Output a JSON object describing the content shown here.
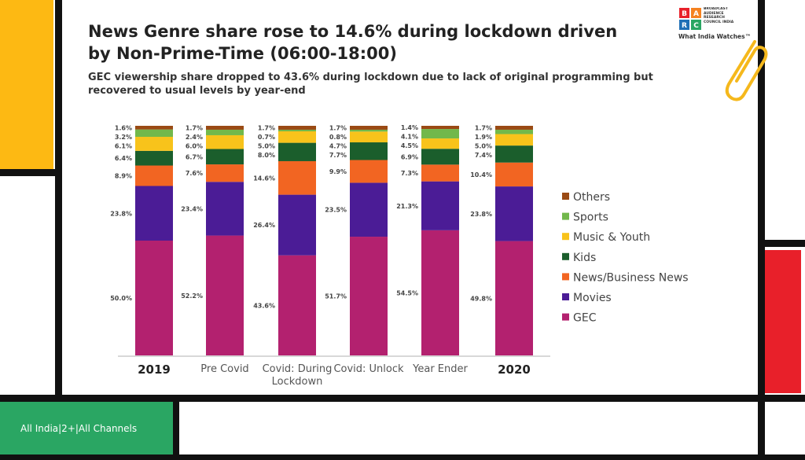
{
  "header": {
    "title": "News Genre share rose to 14.6% during lockdown driven by Non-Prime-Time (06:00-18:00)",
    "subtitle": "GEC viewership share dropped to 43.6% during lockdown due to lack of original programming but recovered to usual levels by year-end"
  },
  "logo": {
    "letters": [
      "B",
      "A",
      "R",
      "C"
    ],
    "name": "BROADCAST AUDIENCE RESEARCH COUNCIL INDIA",
    "tagline": "What India Watches™"
  },
  "footer": {
    "text": "All India|2+|All Channels"
  },
  "chart_data": {
    "type": "stacked_bar",
    "categories": [
      "2019",
      "Pre Covid",
      "Covid: During Lockdown",
      "Covid: Unlock",
      "Year Ender",
      "2020"
    ],
    "ylim": [
      0,
      100
    ],
    "series": [
      {
        "name": "GEC",
        "color": "#b3216f",
        "values": [
          50.0,
          52.2,
          43.6,
          51.7,
          54.5,
          49.8
        ],
        "value_labels": [
          "50.0%",
          "52.2%",
          "43.6%",
          "51.7%",
          "54.5%",
          "49.8%"
        ]
      },
      {
        "name": "Movies",
        "color": "#4b1c96",
        "values": [
          23.8,
          23.4,
          26.4,
          23.5,
          21.3,
          23.8
        ],
        "value_labels": [
          "23.8%",
          "23.4%",
          "26.4%",
          "23.5%",
          "21.3%",
          "23.8%"
        ]
      },
      {
        "name": "News/Business News",
        "color": "#f26522",
        "values": [
          8.9,
          7.6,
          14.6,
          9.9,
          7.3,
          10.4
        ],
        "value_labels": [
          "8.9%",
          "7.6%",
          "14.6%",
          "9.9%",
          "7.3%",
          "10.4%"
        ]
      },
      {
        "name": "Kids",
        "color": "#1b5e2c",
        "values": [
          6.4,
          6.7,
          8.0,
          7.7,
          6.9,
          7.4
        ],
        "value_labels": [
          "6.4%",
          "6.7%",
          "8.0%",
          "7.7%",
          "6.9%",
          "7.4%"
        ]
      },
      {
        "name": "Music & Youth",
        "color": "#f8c31b",
        "values": [
          6.1,
          6.0,
          5.0,
          4.7,
          4.5,
          5.0
        ],
        "value_labels": [
          "6.1%",
          "6.0%",
          "5.0%",
          "4.7%",
          "4.5%",
          "5.0%"
        ]
      },
      {
        "name": "Sports",
        "color": "#72b84b",
        "values": [
          3.2,
          2.4,
          0.7,
          0.8,
          4.1,
          1.9
        ],
        "value_labels": [
          "3.2%",
          "2.4%",
          "0.7%",
          "0.8%",
          "4.1%",
          "1.9%"
        ]
      },
      {
        "name": "Others",
        "color": "#9a4a14",
        "values": [
          1.6,
          1.7,
          1.7,
          1.7,
          1.4,
          1.7
        ],
        "value_labels": [
          "1.6%",
          "1.7%",
          "1.7%",
          "1.7%",
          "1.4%",
          "1.7%"
        ]
      }
    ]
  }
}
